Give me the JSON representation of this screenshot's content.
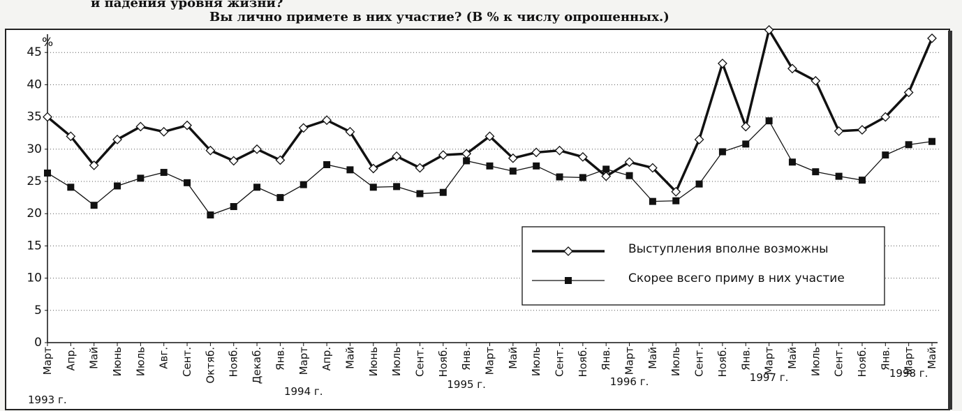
{
  "chart_data": {
    "type": "line",
    "title": "Вы лично примете в них участие? (В % к числу опрошенных.)",
    "subtitle": "и падения уровня жизни?",
    "y_label": "%",
    "categories": [
      "Март",
      "Апр.",
      "Май",
      "Июнь",
      "Июль",
      "Авг.",
      "Сент.",
      "Октяб.",
      "Нояб.",
      "Декаб.",
      "Янв.",
      "Март",
      "Апр.",
      "Май",
      "Июнь",
      "Июль",
      "Сент.",
      "Нояб.",
      "Янв.",
      "Март",
      "Май",
      "Июль",
      "Сент.",
      "Нояб.",
      "Янв.",
      "Март",
      "Май",
      "Июль",
      "Сент.",
      "Нояб.",
      "Янв.",
      "Март",
      "Май",
      "Июль",
      "Сент.",
      "Нояб.",
      "Янв.",
      "Март",
      "Май"
    ],
    "year_labels": [
      "1993 г.",
      "1994 г.",
      "1995 г.",
      "1996 г.",
      "1997 г.",
      "1998 г."
    ],
    "series": [
      {
        "name": "Выступления вполне возможны",
        "color": "#111111",
        "marker": "diamond",
        "values": [
          35,
          32,
          27.5,
          31.5,
          33.5,
          32.7,
          33.7,
          29.8,
          28.2,
          30,
          28.3,
          33.3,
          34.5,
          32.7,
          27,
          28.9,
          27.1,
          29.1,
          29.3,
          32,
          28.6,
          29.5,
          29.8,
          28.8,
          25.8,
          28,
          27.1,
          23.4,
          31.5,
          43.3,
          33.5,
          48.5,
          42.5,
          40.6,
          32.8,
          33,
          35,
          38.8,
          47.2
        ]
      },
      {
        "name": "Скорее всего приму в них участие",
        "color": "#111111",
        "marker": "square",
        "values": [
          26.3,
          24.1,
          21.3,
          24.3,
          25.5,
          26.4,
          24.8,
          19.8,
          21.1,
          24.1,
          22.5,
          24.5,
          27.6,
          26.8,
          24.1,
          24.2,
          23.1,
          23.3,
          28.2,
          27.4,
          26.6,
          27.4,
          25.7,
          25.6,
          26.9,
          25.9,
          21.9,
          22,
          24.6,
          29.6,
          30.8,
          34.4,
          28,
          26.5,
          25.8,
          25.2,
          29.1,
          30.7,
          31.2
        ]
      }
    ],
    "ylim": [
      0,
      50
    ],
    "yticks": [
      0,
      5,
      10,
      15,
      20,
      25,
      30,
      35,
      40,
      45
    ],
    "grid": true,
    "legend": "lower right"
  }
}
